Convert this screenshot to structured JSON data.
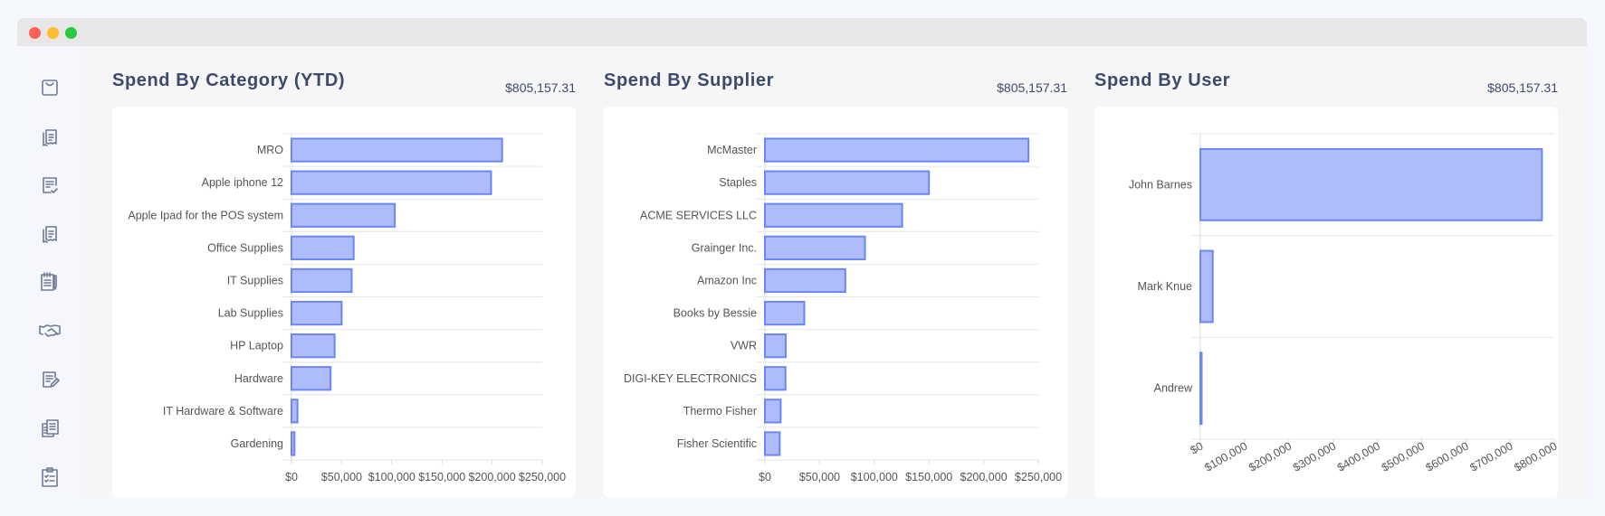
{
  "window": {
    "controls": [
      "close",
      "minimize",
      "maximize"
    ]
  },
  "sidebar": {
    "items": [
      {
        "icon": "shopping-bag-icon"
      },
      {
        "icon": "receipts-icon"
      },
      {
        "icon": "document-check-icon"
      },
      {
        "icon": "receipts-icon"
      },
      {
        "icon": "notepad-pencil-icon"
      },
      {
        "icon": "handshake-icon"
      },
      {
        "icon": "document-edit-icon"
      },
      {
        "icon": "documents-icon"
      },
      {
        "icon": "clipboard-checklist-icon"
      }
    ]
  },
  "colors": {
    "bar_fill": "#aebcfb",
    "bar_stroke": "#6b86f7",
    "title": "#3d4a6b"
  },
  "panels": [
    {
      "title": "Spend By Category (YTD)",
      "total": "$805,157.31"
    },
    {
      "title": "Spend By Supplier",
      "total": "$805,157.31"
    },
    {
      "title": "Spend By User",
      "total": "$805,157.31"
    }
  ],
  "chart_data": [
    {
      "type": "bar",
      "orientation": "horizontal",
      "xlim": [
        0,
        250000
      ],
      "ticks": [
        "$0",
        "$50,000",
        "$100,000",
        "$150,000",
        "$200,000",
        "$250,000"
      ],
      "tick_values": [
        0,
        50000,
        100000,
        150000,
        200000,
        250000
      ],
      "categories": [
        "MRO",
        "Apple iphone 12",
        "Apple Ipad for the POS system",
        "Office Supplies",
        "IT Supplies",
        "Lab Supplies",
        "HP Laptop",
        "Hardware",
        "IT Hardware & Software",
        "Gardening"
      ],
      "values": [
        210000,
        199000,
        103000,
        62000,
        60000,
        50000,
        43000,
        39000,
        6000,
        3000
      ]
    },
    {
      "type": "bar",
      "orientation": "horizontal",
      "xlim": [
        0,
        250000
      ],
      "ticks": [
        "$0",
        "$50,000",
        "$100,000",
        "$150,000",
        "$200,000",
        "$250,000"
      ],
      "tick_values": [
        0,
        50000,
        100000,
        150000,
        200000,
        250000
      ],
      "categories": [
        "McMaster",
        "Staples",
        "ACME SERVICES LLC",
        "Grainger Inc.",
        "Amazon Inc",
        "Books by Bessie",
        "VWR",
        "DIGI-KEY ELECTRONICS",
        "Thermo Fisher",
        "Fisher Scientific"
      ],
      "values": [
        241000,
        150000,
        125500,
        91500,
        73500,
        36000,
        19000,
        18800,
        14400,
        13500
      ]
    },
    {
      "type": "bar",
      "orientation": "horizontal",
      "xlim": [
        0,
        800000
      ],
      "ticks": [
        "$0",
        "$100,000",
        "$200,000",
        "$300,000",
        "$400,000",
        "$500,000",
        "$600,000",
        "$700,000",
        "$800,000"
      ],
      "tick_values": [
        0,
        100000,
        200000,
        300000,
        400000,
        500000,
        600000,
        700000,
        800000
      ],
      "categories": [
        "John Barnes",
        "Mark Knue",
        "Andrew"
      ],
      "values": [
        772000,
        28000,
        3000
      ]
    }
  ]
}
